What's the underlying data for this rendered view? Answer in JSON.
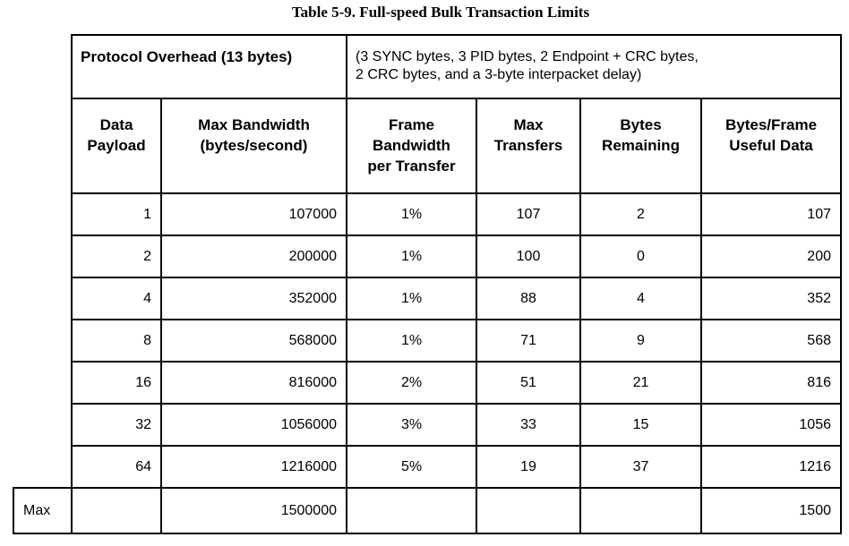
{
  "caption": "Table 5-9.  Full-speed Bulk Transaction Limits",
  "overhead": {
    "label": "Protocol Overhead (13 bytes)",
    "desc_line1": "(3 SYNC bytes, 3 PID bytes, 2 Endpoint + CRC bytes,",
    "desc_line2": "2 CRC bytes, and a 3-byte interpacket delay)"
  },
  "headers": [
    [
      "Data",
      "Payload"
    ],
    [
      "Max Bandwidth",
      "(bytes/second)"
    ],
    [
      "Frame",
      "Bandwidth",
      "per Transfer"
    ],
    [
      "Max",
      "Transfers"
    ],
    [
      "Bytes",
      "Remaining"
    ],
    [
      "Bytes/Frame",
      "Useful Data"
    ]
  ],
  "rows": [
    [
      "1",
      "107000",
      "1%",
      "107",
      "2",
      "107"
    ],
    [
      "2",
      "200000",
      "1%",
      "100",
      "0",
      "200"
    ],
    [
      "4",
      "352000",
      "1%",
      "88",
      "4",
      "352"
    ],
    [
      "8",
      "568000",
      "1%",
      "71",
      "9",
      "568"
    ],
    [
      "16",
      "816000",
      "2%",
      "51",
      "21",
      "816"
    ],
    [
      "32",
      "1056000",
      "3%",
      "33",
      "15",
      "1056"
    ],
    [
      "64",
      "1216000",
      "5%",
      "19",
      "37",
      "1216"
    ]
  ],
  "max_row": {
    "label": "Max",
    "bandwidth": "1500000",
    "useful": "1500"
  }
}
